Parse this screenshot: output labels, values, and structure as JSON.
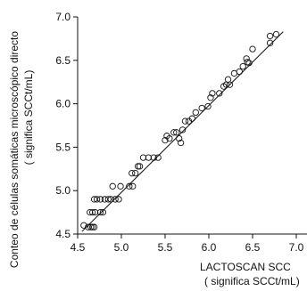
{
  "chart_data": {
    "type": "scatter",
    "xlabel": "LACTOSCAN SCC",
    "xlabel_sub": "( significa SCCt/mL)",
    "ylabel": "Conteo de células somáticas microscópico directo",
    "ylabel_sub": "( significa SCCt/mL)",
    "xlim": [
      4.5,
      7.0
    ],
    "ylim": [
      4.5,
      7.0
    ],
    "x_ticks": [
      "4.5",
      "5.0",
      "5.5",
      "6.0",
      "6.5",
      "7.0"
    ],
    "y_ticks": [
      "4.5",
      "5.0",
      "5.5",
      "6.0",
      "6.5",
      "7.0"
    ],
    "grid": false,
    "regression_line": {
      "x": [
        4.55,
        6.85
      ],
      "y": [
        4.53,
        6.83
      ]
    },
    "points": [
      {
        "x": 4.57,
        "y": 4.6
      },
      {
        "x": 4.62,
        "y": 4.58
      },
      {
        "x": 4.65,
        "y": 4.58
      },
      {
        "x": 4.67,
        "y": 4.58
      },
      {
        "x": 4.69,
        "y": 4.58
      },
      {
        "x": 4.64,
        "y": 4.75
      },
      {
        "x": 4.67,
        "y": 4.75
      },
      {
        "x": 4.7,
        "y": 4.75
      },
      {
        "x": 4.76,
        "y": 4.75
      },
      {
        "x": 4.79,
        "y": 4.75
      },
      {
        "x": 4.69,
        "y": 4.9
      },
      {
        "x": 4.72,
        "y": 4.9
      },
      {
        "x": 4.76,
        "y": 4.9
      },
      {
        "x": 4.81,
        "y": 4.9
      },
      {
        "x": 4.85,
        "y": 4.9
      },
      {
        "x": 4.88,
        "y": 4.9
      },
      {
        "x": 4.93,
        "y": 4.9
      },
      {
        "x": 4.97,
        "y": 4.9
      },
      {
        "x": 4.9,
        "y": 5.05
      },
      {
        "x": 4.99,
        "y": 5.05
      },
      {
        "x": 5.09,
        "y": 5.05
      },
      {
        "x": 5.13,
        "y": 5.05
      },
      {
        "x": 5.12,
        "y": 5.2
      },
      {
        "x": 5.16,
        "y": 5.2
      },
      {
        "x": 5.19,
        "y": 5.28
      },
      {
        "x": 5.21,
        "y": 5.28
      },
      {
        "x": 5.25,
        "y": 5.38
      },
      {
        "x": 5.31,
        "y": 5.38
      },
      {
        "x": 5.37,
        "y": 5.38
      },
      {
        "x": 5.42,
        "y": 5.38
      },
      {
        "x": 5.5,
        "y": 5.58
      },
      {
        "x": 5.55,
        "y": 5.6
      },
      {
        "x": 5.52,
        "y": 5.63
      },
      {
        "x": 5.6,
        "y": 5.67
      },
      {
        "x": 5.63,
        "y": 5.67
      },
      {
        "x": 5.66,
        "y": 5.6
      },
      {
        "x": 5.68,
        "y": 5.55
      },
      {
        "x": 5.7,
        "y": 5.7
      },
      {
        "x": 5.73,
        "y": 5.8
      },
      {
        "x": 5.77,
        "y": 5.8
      },
      {
        "x": 5.81,
        "y": 5.83
      },
      {
        "x": 5.85,
        "y": 5.9
      },
      {
        "x": 5.92,
        "y": 5.95
      },
      {
        "x": 5.99,
        "y": 5.97
      },
      {
        "x": 6.02,
        "y": 6.07
      },
      {
        "x": 6.04,
        "y": 6.12
      },
      {
        "x": 6.12,
        "y": 6.12
      },
      {
        "x": 6.17,
        "y": 6.2
      },
      {
        "x": 6.2,
        "y": 6.22
      },
      {
        "x": 6.24,
        "y": 6.22
      },
      {
        "x": 6.22,
        "y": 6.28
      },
      {
        "x": 6.29,
        "y": 6.35
      },
      {
        "x": 6.35,
        "y": 6.37
      },
      {
        "x": 6.39,
        "y": 6.43
      },
      {
        "x": 6.44,
        "y": 6.48
      },
      {
        "x": 6.46,
        "y": 6.47
      },
      {
        "x": 6.43,
        "y": 6.52
      },
      {
        "x": 6.5,
        "y": 6.63
      },
      {
        "x": 6.7,
        "y": 6.7
      },
      {
        "x": 6.7,
        "y": 6.78
      },
      {
        "x": 6.77,
        "y": 6.8
      }
    ]
  }
}
